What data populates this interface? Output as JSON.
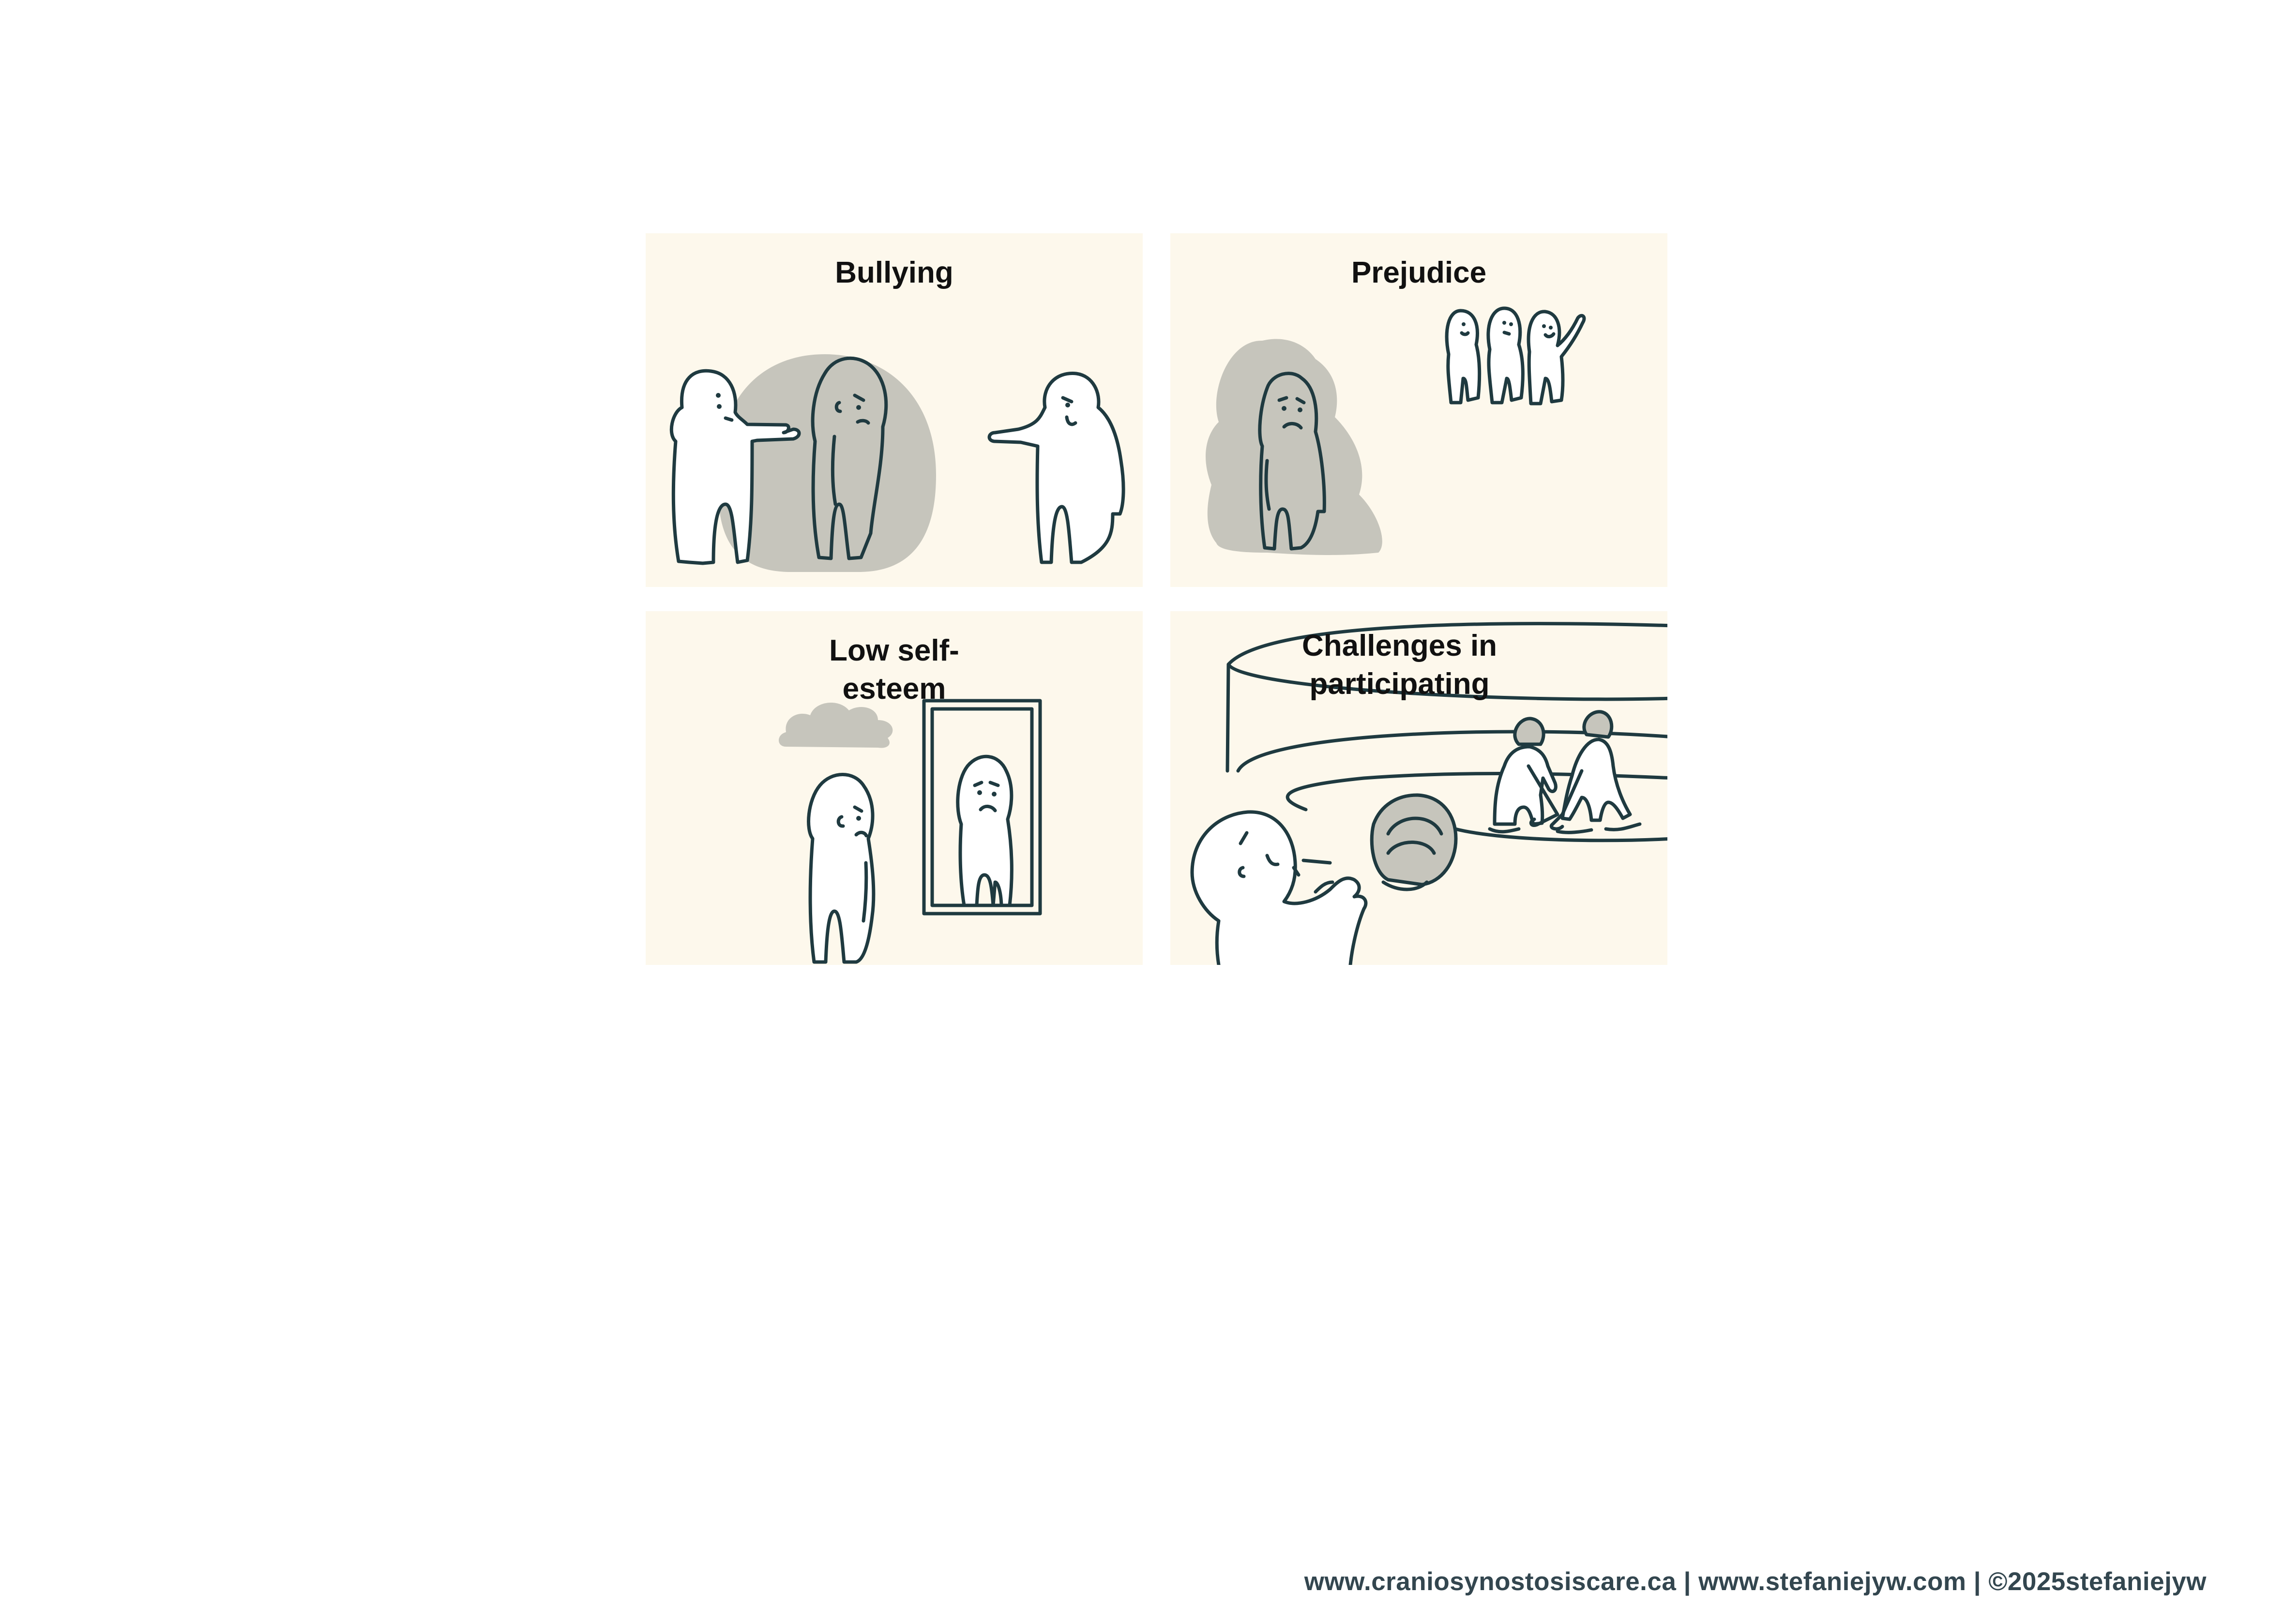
{
  "panels": [
    {
      "id": "bullying",
      "title_lines": [
        "Bullying"
      ]
    },
    {
      "id": "prejudice",
      "title_lines": [
        "Prejudice"
      ]
    },
    {
      "id": "low-self-esteem",
      "title_lines": [
        "Low self-",
        "esteem"
      ]
    },
    {
      "id": "challenges-in-participating",
      "title_lines": [
        "Challenges in",
        "participating"
      ]
    }
  ],
  "footer": {
    "text": "www.craniosynostosiscare.ca | www.stefaniejyw.com | ©2025stefaniejyw"
  },
  "colors": {
    "panel_background": "#fdf8ec",
    "ink": "#1f3a40",
    "shade": "#c6c5bc",
    "footer_text": "#33464f"
  }
}
